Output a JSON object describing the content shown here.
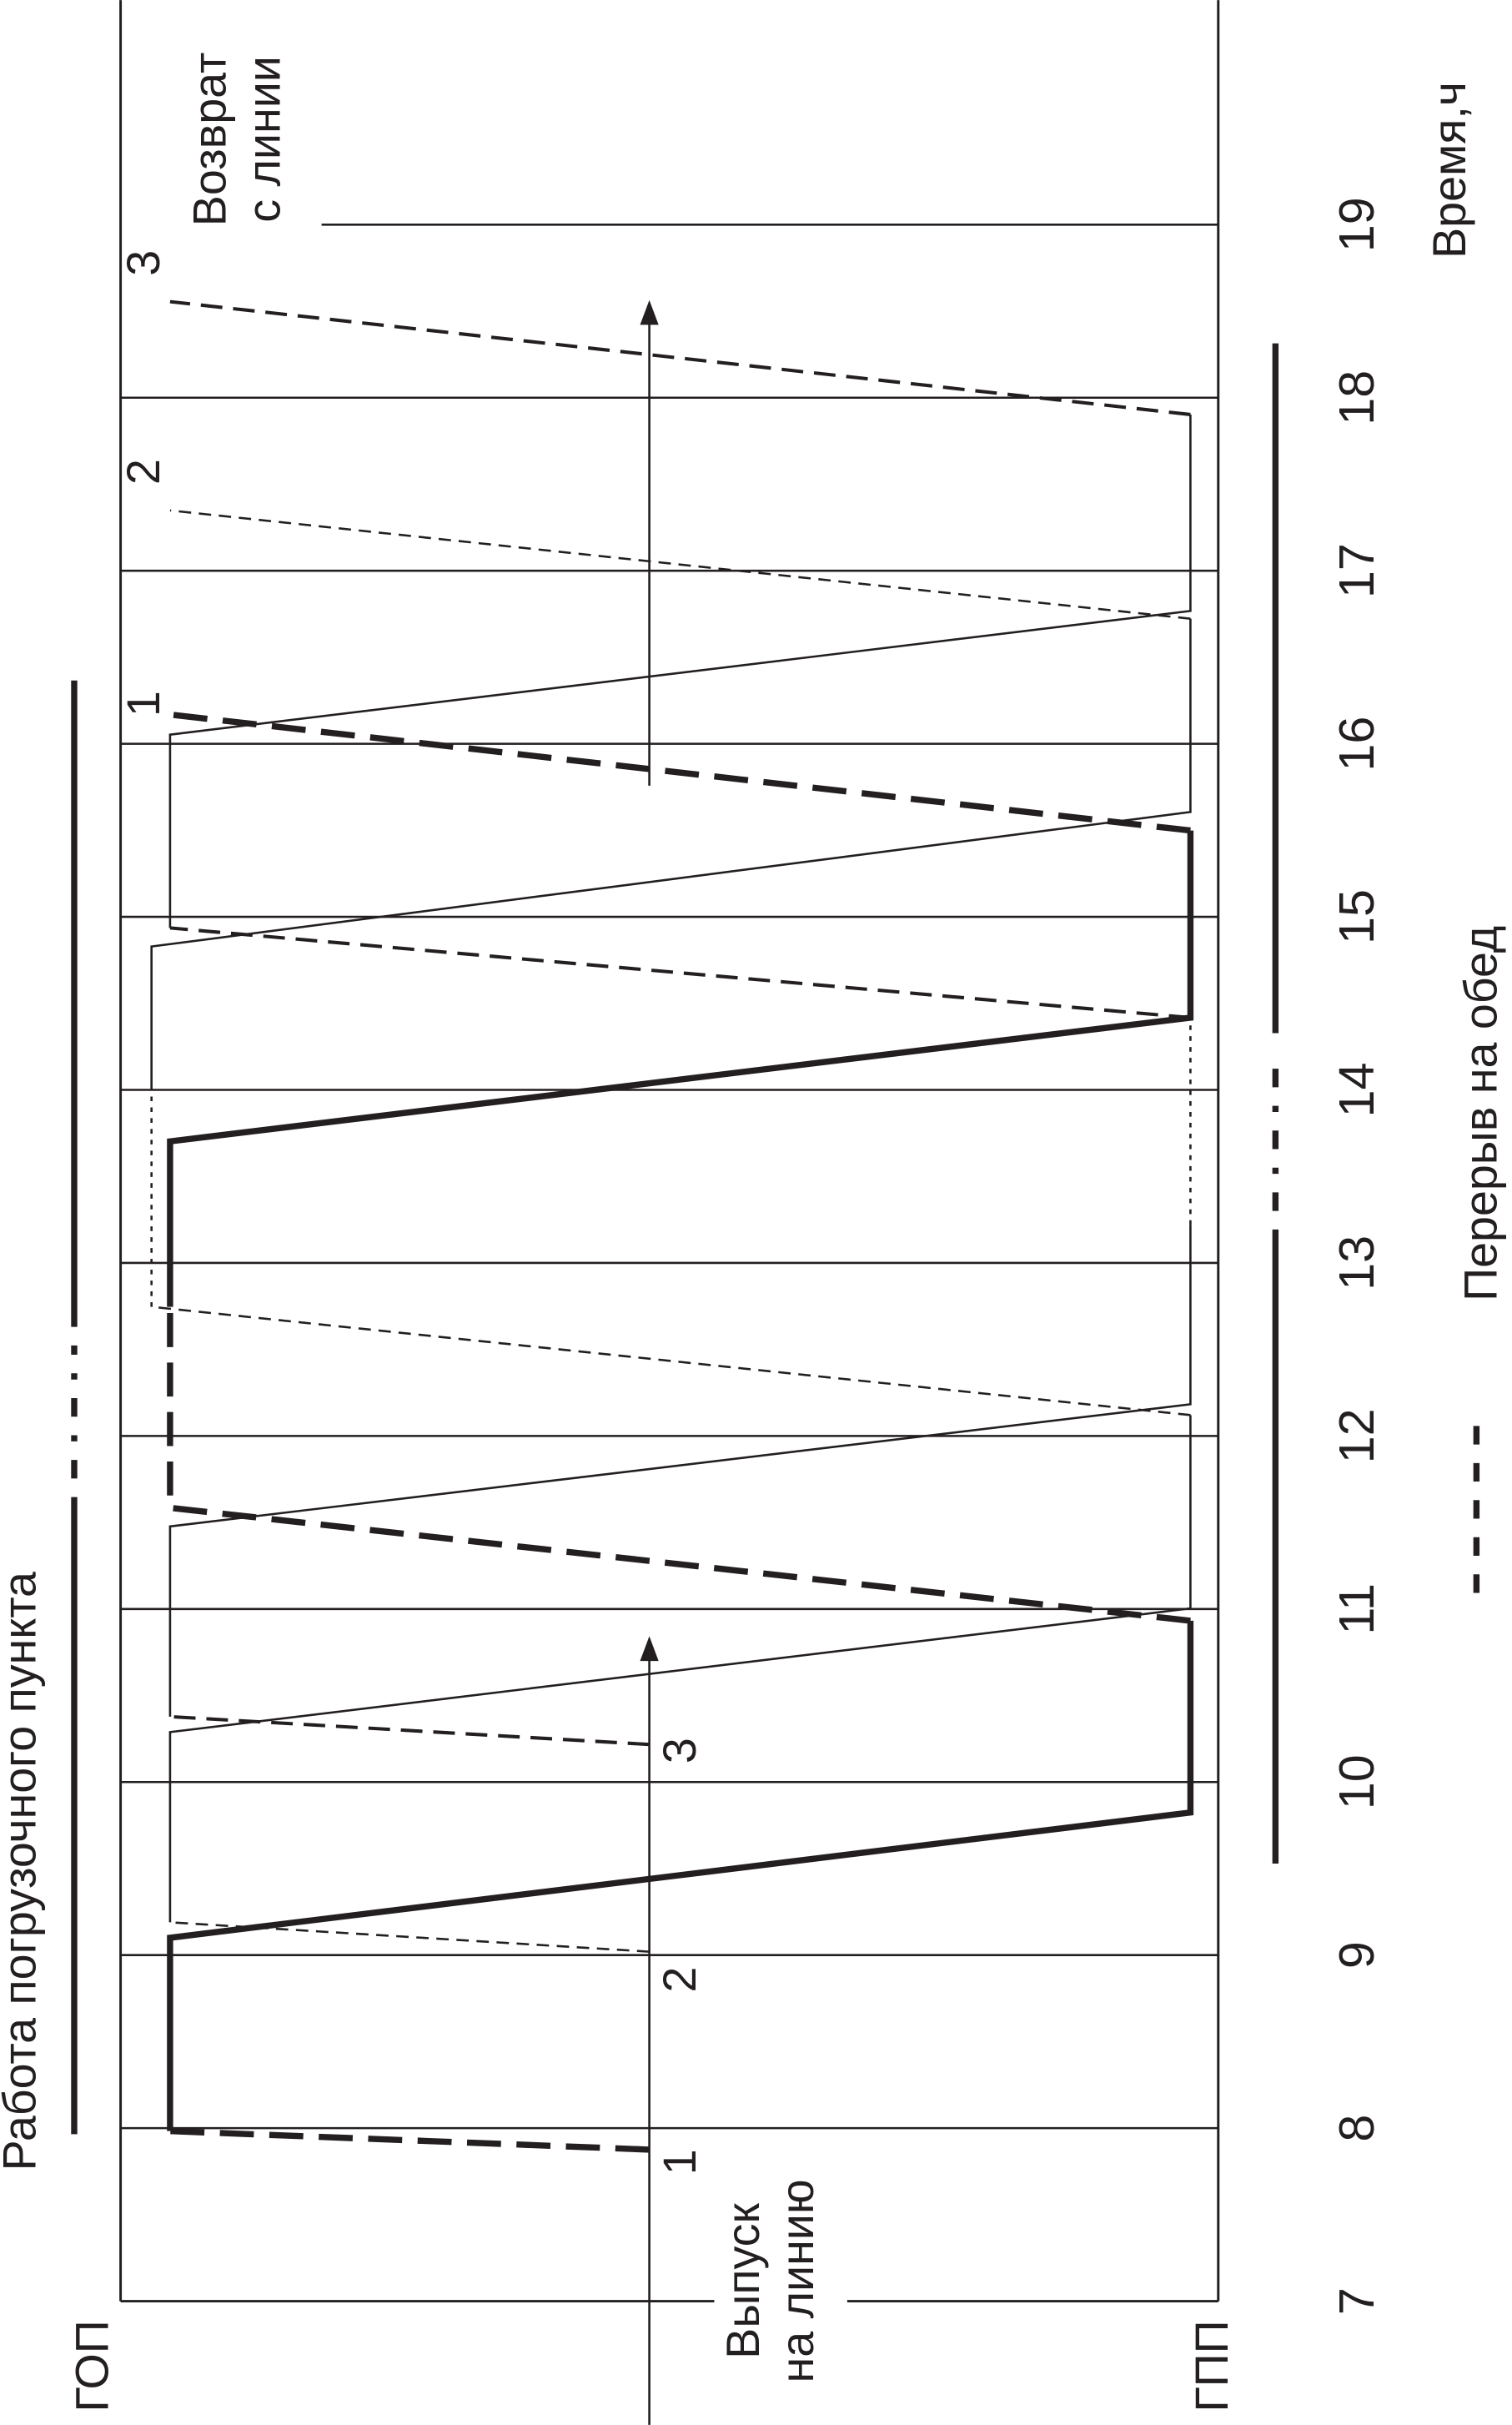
{
  "labels": {
    "left_point": "ГОП",
    "right_point": "ГПП",
    "time_ticks": [
      "7",
      "8",
      "9",
      "10",
      "11",
      "12",
      "13",
      "14",
      "15",
      "16",
      "17",
      "18",
      "19"
    ],
    "time_unit": "Время,ч",
    "loading_work": "Работа погрузочного пункта",
    "departure": [
      "Выпуск",
      "на линию"
    ],
    "return": [
      "Возврат",
      "с линии"
    ],
    "lunch_break": "Перерыв на обед",
    "departure_numbers": [
      "1",
      "2",
      "3"
    ],
    "return_numbers": [
      "1",
      "2",
      "3"
    ]
  }
}
